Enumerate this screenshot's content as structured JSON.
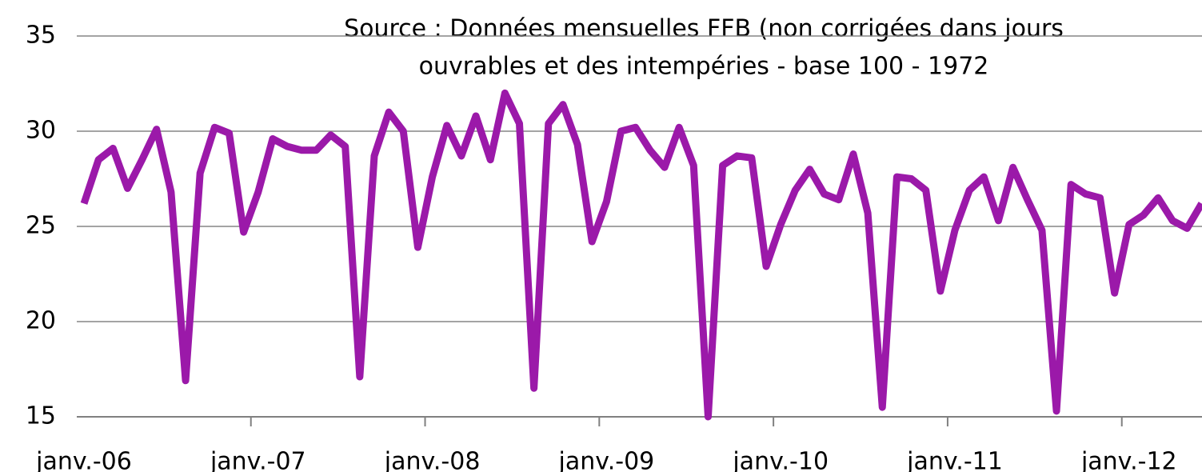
{
  "chart_data": {
    "type": "line",
    "title": [
      "Source :  Données mensuelles FFB (non corrigées dans jours",
      "ouvrables et des intempéries - base 100  - 1972"
    ],
    "categories": [
      "janv.-06",
      null,
      null,
      null,
      null,
      null,
      null,
      null,
      null,
      null,
      null,
      null,
      "janv.-07",
      null,
      null,
      null,
      null,
      null,
      null,
      null,
      null,
      null,
      null,
      null,
      "janv.-08",
      null,
      null,
      null,
      null,
      null,
      null,
      null,
      null,
      null,
      null,
      null,
      "janv.-09",
      null,
      null,
      null,
      null,
      null,
      null,
      null,
      null,
      null,
      null,
      null,
      "janv.-10",
      null,
      null,
      null,
      null,
      null,
      null,
      null,
      null,
      null,
      null,
      null,
      "janv.-11",
      null,
      null,
      null,
      null,
      null,
      null,
      null,
      null,
      null,
      null,
      null,
      "janv.-12",
      null,
      null,
      null,
      null,
      null
    ],
    "series": [
      {
        "color": "#9b19a9",
        "values": [
          26.2,
          28.5,
          29.1,
          27.0,
          28.5,
          30.1,
          26.8,
          16.9,
          27.8,
          30.2,
          29.9,
          24.7,
          26.8,
          29.6,
          29.2,
          29.0,
          29.0,
          29.8,
          29.2,
          17.1,
          28.7,
          31.0,
          30.0,
          23.9,
          27.6,
          30.3,
          28.7,
          30.8,
          28.5,
          32.0,
          30.4,
          16.5,
          30.4,
          31.4,
          29.3,
          24.2,
          26.3,
          30.0,
          30.2,
          29.0,
          28.1,
          30.2,
          28.2,
          15.0,
          28.2,
          28.7,
          28.6,
          22.9,
          25.1,
          26.9,
          28.0,
          26.7,
          26.4,
          28.8,
          25.7,
          15.5,
          27.6,
          27.5,
          26.9,
          21.6,
          24.8,
          26.9,
          27.6,
          25.3,
          28.1,
          26.4,
          24.8,
          15.3,
          27.2,
          26.7,
          26.5,
          21.5,
          25.1,
          25.6,
          26.5,
          25.3,
          24.9,
          26.2
        ]
      }
    ],
    "ylim": [
      15,
      35
    ],
    "yticks": [
      15,
      20,
      25,
      30,
      35
    ],
    "grid": true
  }
}
